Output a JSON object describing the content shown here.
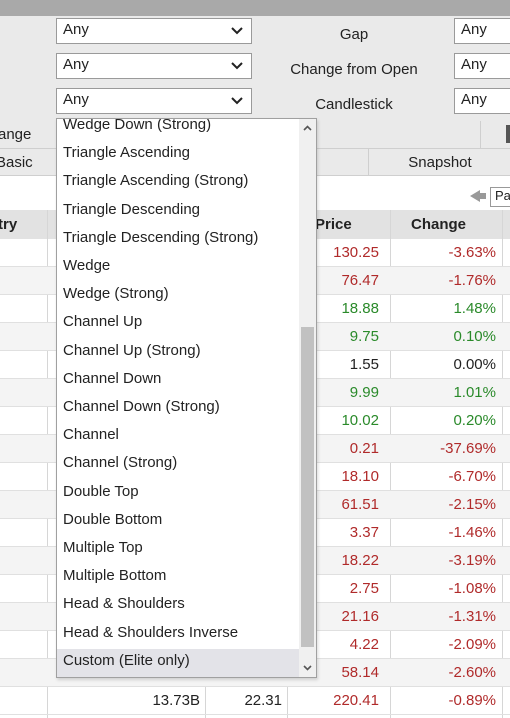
{
  "filters": [
    {
      "left_value": "Any",
      "label": "Gap",
      "right_value": "Any"
    },
    {
      "left_value": "Any",
      "label": "Change from Open",
      "right_value": "Any"
    },
    {
      "left_value": "Any",
      "label": "Candlestick",
      "right_value": "Any"
    }
  ],
  "range_label": "ange",
  "tabs": {
    "basic": "Basic",
    "snapshot": "Snapshot"
  },
  "pager_label": "Pa",
  "table": {
    "headers": {
      "country": "try",
      "price": "Price",
      "change": "Change"
    },
    "rows": [
      {
        "price": "130.25",
        "change": "-3.63%",
        "dir": "neg"
      },
      {
        "price": "76.47",
        "change": "-1.76%",
        "dir": "neg"
      },
      {
        "price": "18.88",
        "change": "1.48%",
        "dir": "pos"
      },
      {
        "price": "9.75",
        "change": "0.10%",
        "dir": "pos"
      },
      {
        "price": "1.55",
        "change": "0.00%",
        "dir": "zero"
      },
      {
        "price": "9.99",
        "change": "1.01%",
        "dir": "pos"
      },
      {
        "price": "10.02",
        "change": "0.20%",
        "dir": "pos"
      },
      {
        "price": "0.21",
        "change": "-37.69%",
        "dir": "neg"
      },
      {
        "price": "18.10",
        "change": "-6.70%",
        "dir": "neg"
      },
      {
        "price": "61.51",
        "change": "-2.15%",
        "dir": "neg"
      },
      {
        "price": "3.37",
        "change": "-1.46%",
        "dir": "neg"
      },
      {
        "price": "18.22",
        "change": "-3.19%",
        "dir": "neg"
      },
      {
        "price": "2.75",
        "change": "-1.08%",
        "dir": "neg"
      },
      {
        "price": "21.16",
        "change": "-1.31%",
        "dir": "neg"
      },
      {
        "price": "4.22",
        "change": "-2.09%",
        "dir": "neg"
      },
      {
        "price": "58.14",
        "change": "-2.60%",
        "dir": "neg"
      },
      {
        "market_cap": "13.73B",
        "pe": "22.31",
        "price": "220.41",
        "change": "-0.89%",
        "dir": "neg"
      }
    ]
  },
  "dropdown": {
    "options": [
      "Wedge Down (Strong)",
      "Triangle Ascending",
      "Triangle Ascending (Strong)",
      "Triangle Descending",
      "Triangle Descending (Strong)",
      "Wedge",
      "Wedge (Strong)",
      "Channel Up",
      "Channel Up (Strong)",
      "Channel Down",
      "Channel Down (Strong)",
      "Channel",
      "Channel (Strong)",
      "Double Top",
      "Double Bottom",
      "Multiple Top",
      "Multiple Bottom",
      "Head & Shoulders",
      "Head & Shoulders Inverse",
      "Custom (Elite only)"
    ],
    "highlighted": "Custom (Elite only)"
  },
  "colors": {
    "negative": "#b02a2a",
    "positive": "#2a8a2a",
    "filter_bg": "#eaeaea",
    "header_bg": "#e2e2e2"
  }
}
